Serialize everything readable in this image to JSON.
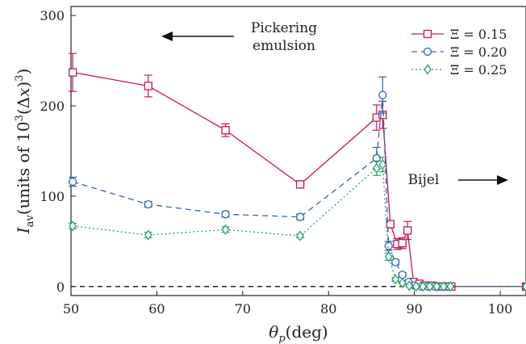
{
  "chart_data": {
    "type": "scatter",
    "xlabel": "θp(deg)",
    "ylabel": "Iav(units of 10³(Δx)³)",
    "xlim": [
      50,
      103
    ],
    "ylim": [
      -10,
      310
    ],
    "x_ticks": [
      50,
      60,
      70,
      80,
      90,
      100
    ],
    "y_ticks": [
      0,
      100,
      200,
      300
    ],
    "x_tick_labels": [
      "50",
      "60",
      "70",
      "80",
      "90",
      "100"
    ],
    "y_tick_labels": [
      "0",
      "100",
      "200",
      "300"
    ],
    "grid": false,
    "legend_position": "top-right",
    "reference_line": {
      "y": 0,
      "style": "dashed"
    },
    "annotations": {
      "left_text_line1": "Pickering",
      "left_text_line2": "emulsion",
      "left_arrow": "left",
      "right_text": "Bijel",
      "right_arrow": "right"
    },
    "series": [
      {
        "name": "Ξ = 0.15",
        "color": "#c8174f",
        "marker": "square",
        "line": "solid",
        "points": [
          {
            "x": 50.2,
            "y": 237,
            "err": 21
          },
          {
            "x": 59.0,
            "y": 222,
            "err": 12
          },
          {
            "x": 68.0,
            "y": 173,
            "err": 7
          },
          {
            "x": 76.7,
            "y": 113,
            "err": 4
          },
          {
            "x": 85.6,
            "y": 187,
            "err": 14
          },
          {
            "x": 86.3,
            "y": 190,
            "err": 15
          },
          {
            "x": 87.2,
            "y": 69,
            "err": 4
          },
          {
            "x": 88.0,
            "y": 47,
            "err": 6
          },
          {
            "x": 88.6,
            "y": 48,
            "err": 6
          },
          {
            "x": 89.2,
            "y": 62,
            "err": 10
          },
          {
            "x": 89.9,
            "y": 5,
            "err": 2
          },
          {
            "x": 90.6,
            "y": 3,
            "err": 1
          },
          {
            "x": 91.2,
            "y": 1,
            "err": 1
          },
          {
            "x": 92.0,
            "y": 1,
            "err": 1
          },
          {
            "x": 92.8,
            "y": 0,
            "err": 1
          },
          {
            "x": 93.6,
            "y": 0,
            "err": 1
          },
          {
            "x": 94.3,
            "y": 0,
            "err": 1
          },
          {
            "x": 103.0,
            "y": 0,
            "err": 0
          }
        ]
      },
      {
        "name": "Ξ = 0.20",
        "color": "#2f63b6",
        "marker": "circle",
        "line": "dashed",
        "points": [
          {
            "x": 50.2,
            "y": 116,
            "err": 5
          },
          {
            "x": 59.0,
            "y": 91,
            "err": 3
          },
          {
            "x": 68.0,
            "y": 80,
            "err": 3
          },
          {
            "x": 76.7,
            "y": 77,
            "err": 3
          },
          {
            "x": 85.6,
            "y": 142,
            "err": 12
          },
          {
            "x": 86.3,
            "y": 212,
            "err": 20
          },
          {
            "x": 87.0,
            "y": 45,
            "err": 5
          },
          {
            "x": 87.8,
            "y": 27,
            "err": 3
          },
          {
            "x": 88.6,
            "y": 13,
            "err": 2
          },
          {
            "x": 89.3,
            "y": 5,
            "err": 2
          },
          {
            "x": 90.0,
            "y": 1,
            "err": 1
          },
          {
            "x": 90.8,
            "y": 0,
            "err": 1
          },
          {
            "x": 91.6,
            "y": 0,
            "err": 1
          },
          {
            "x": 92.4,
            "y": 0,
            "err": 1
          },
          {
            "x": 93.2,
            "y": 0,
            "err": 1
          },
          {
            "x": 94.0,
            "y": 0,
            "err": 1
          },
          {
            "x": 103.0,
            "y": 0,
            "err": 0
          }
        ]
      },
      {
        "name": "Ξ = 0.25",
        "color": "#2aa06a",
        "marker": "diamond",
        "line": "dotted",
        "points": [
          {
            "x": 50.2,
            "y": 67,
            "err": 3
          },
          {
            "x": 59.0,
            "y": 57,
            "err": 3
          },
          {
            "x": 68.0,
            "y": 63,
            "err": 3
          },
          {
            "x": 76.7,
            "y": 56,
            "err": 2
          },
          {
            "x": 85.6,
            "y": 131,
            "err": 8
          },
          {
            "x": 86.3,
            "y": 135,
            "err": 8
          },
          {
            "x": 87.0,
            "y": 33,
            "err": 4
          },
          {
            "x": 87.8,
            "y": 8,
            "err": 2
          },
          {
            "x": 88.6,
            "y": 4,
            "err": 1
          },
          {
            "x": 89.4,
            "y": 1,
            "err": 1
          },
          {
            "x": 90.2,
            "y": 0,
            "err": 1
          },
          {
            "x": 91.0,
            "y": 0,
            "err": 1
          },
          {
            "x": 91.8,
            "y": 0,
            "err": 1
          },
          {
            "x": 92.6,
            "y": 0,
            "err": 1
          },
          {
            "x": 93.4,
            "y": 0,
            "err": 1
          },
          {
            "x": 94.2,
            "y": 0,
            "err": 1
          },
          {
            "x": 103.0,
            "y": 0,
            "err": 0
          }
        ]
      }
    ]
  }
}
